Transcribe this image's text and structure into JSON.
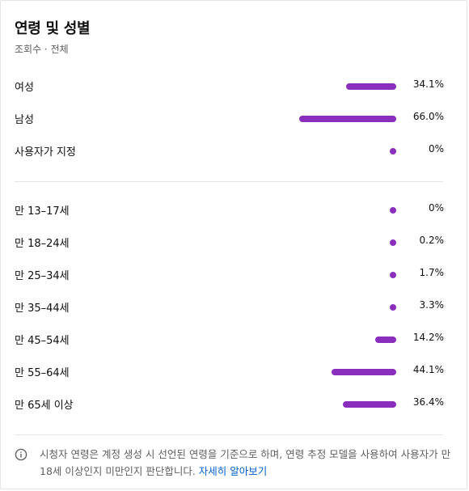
{
  "panel": {
    "title": "연령 및 성별",
    "subtitle": "조회수 · 전체"
  },
  "gender": [
    {
      "label": "여성",
      "value": "34.1%",
      "percent": 34.1
    },
    {
      "label": "남성",
      "value": "66.0%",
      "percent": 66.0
    },
    {
      "label": "사용자가 지정",
      "value": "0%",
      "percent": 0
    }
  ],
  "age": [
    {
      "label": "만 13–17세",
      "value": "0%",
      "percent": 0
    },
    {
      "label": "만 18–24세",
      "value": "0.2%",
      "percent": 0.2
    },
    {
      "label": "만 25–34세",
      "value": "1.7%",
      "percent": 1.7
    },
    {
      "label": "만 35–44세",
      "value": "3.3%",
      "percent": 3.3
    },
    {
      "label": "만 45–54세",
      "value": "14.2%",
      "percent": 14.2
    },
    {
      "label": "만 55–64세",
      "value": "44.1%",
      "percent": 44.1
    },
    {
      "label": "만 65세 이상",
      "value": "36.4%",
      "percent": 36.4
    }
  ],
  "info": {
    "icon": "info-icon",
    "text": "시청자 연령은 계정 생성 시 선언된 연령을 기준으로 하며, 연령 추정 모델을 사용하여 사용자가 만 18세 이상인지 미만인지 판단합니다. ",
    "link_label": "자세히 알아보기"
  },
  "colors": {
    "bar": "#8a2fbd",
    "link": "#065fd4"
  }
}
